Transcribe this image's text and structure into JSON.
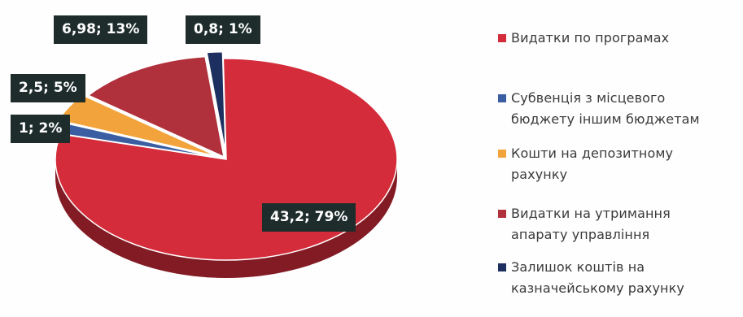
{
  "chart_data": {
    "type": "pie",
    "title": "",
    "slices": [
      {
        "label": "Видатки по програмах",
        "value": 43.2,
        "percent": "79%",
        "data_label": "43,2; 79%",
        "color": "#d42c3a"
      },
      {
        "label": "Субвенція з місцевого бюджету іншим бюджетам",
        "value": 1,
        "percent": "2%",
        "data_label": "1; 2%",
        "color": "#3b5ea3"
      },
      {
        "label": "Кошти на депозитному рахунку",
        "value": 2.5,
        "percent": "5%",
        "data_label": "2,5; 5%",
        "color": "#f2a33c"
      },
      {
        "label": "Видатки на утримання апарату управління",
        "value": 6.98,
        "percent": "13%",
        "data_label": "6,98; 13%",
        "color": "#b0303c"
      },
      {
        "label": "Залишок коштів на казначейському рахунку",
        "value": 0.8,
        "percent": "1%",
        "data_label": "0,8; 1%",
        "color": "#1c2f5e"
      }
    ],
    "legend_position": "right"
  },
  "legend": {
    "items": [
      {
        "lines": [
          "Видатки по програмах"
        ],
        "color": "#d42c3a"
      },
      {
        "lines": [
          "Субвенція з місцевого",
          "бюджету іншим бюджетам"
        ],
        "color": "#3b5ea3"
      },
      {
        "lines": [
          "Кошти на депозитному",
          "рахунку"
        ],
        "color": "#f2a33c"
      },
      {
        "lines": [
          "Видатки на утримання",
          "апарату управління"
        ],
        "color": "#b0303c"
      },
      {
        "lines": [
          "Залишок коштів на",
          "казначейському рахунку"
        ],
        "color": "#1c2f5e"
      }
    ]
  }
}
